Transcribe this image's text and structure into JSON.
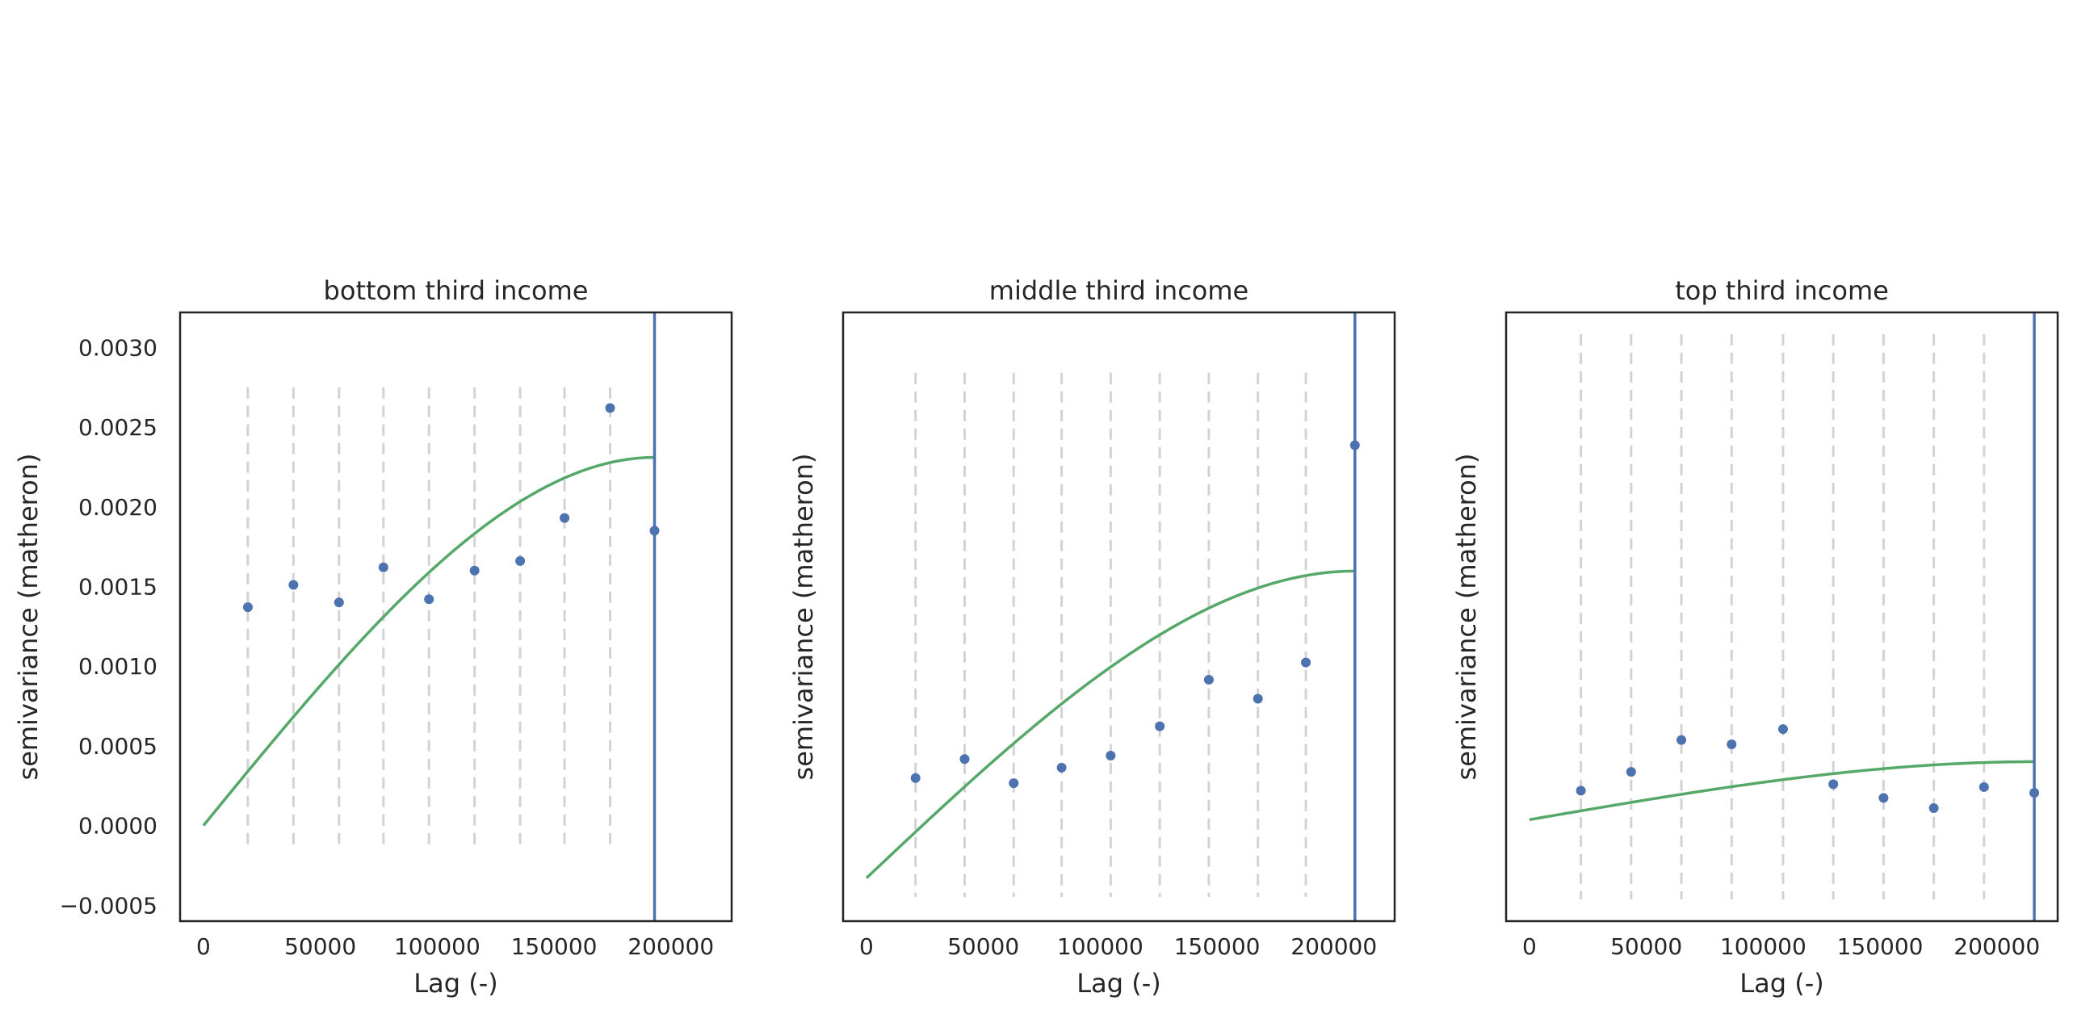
{
  "chart_data": [
    {
      "type": "scatter",
      "title": "bottom third income",
      "xlabel": "Lag (-)",
      "ylabel": "semivariance (matheron)",
      "xlim": [
        -10000,
        226000
      ],
      "ylim": [
        -0.0006,
        0.00322
      ],
      "xticks": [
        0,
        50000,
        100000,
        150000,
        200000
      ],
      "xtick_labels": [
        "0",
        "50000",
        "100000",
        "150000",
        "200000"
      ],
      "yticks": [
        -0.0005,
        0.0,
        0.0005,
        0.001,
        0.0015,
        0.002,
        0.0025,
        0.003
      ],
      "ytick_labels": [
        "−0.0005",
        "0.0000",
        "0.0005",
        "0.0010",
        "0.0015",
        "0.0020",
        "0.0025",
        "0.0030"
      ],
      "show_yticks": true,
      "grid": false,
      "bin_edges": [
        19000,
        38500,
        58000,
        77000,
        96500,
        116000,
        135500,
        154500,
        174000
      ],
      "bin_line_range": [
        -0.00012,
        0.00275
      ],
      "points": {
        "x": [
          19000,
          38500,
          58000,
          77000,
          96500,
          116000,
          135500,
          154500,
          174000,
          193000
        ],
        "y": [
          0.00137,
          0.00151,
          0.0014,
          0.00162,
          0.00142,
          0.0016,
          0.00166,
          0.00193,
          0.00262,
          0.00185
        ]
      },
      "model": {
        "type": "spherical",
        "range": 193000,
        "sill": 0.00231,
        "nugget": 0.0
      },
      "max_lag": 193000
    },
    {
      "type": "scatter",
      "title": "middle third income",
      "xlabel": "Lag (-)",
      "ylabel": "semivariance (matheron)",
      "xlim": [
        -10000,
        226000
      ],
      "ylim": [
        -0.00025,
        0.00328
      ],
      "xticks": [
        0,
        50000,
        100000,
        150000,
        200000
      ],
      "xtick_labels": [
        "0",
        "50000",
        "100000",
        "150000",
        "200000"
      ],
      "yticks": [],
      "ytick_labels": [],
      "show_yticks": false,
      "grid": false,
      "bin_edges": [
        21000,
        42000,
        63000,
        83500,
        104500,
        125500,
        146500,
        167500,
        188000
      ],
      "bin_line_range": [
        -0.00011,
        0.00293
      ],
      "points": {
        "x": [
          21000,
          42000,
          63000,
          83500,
          104500,
          125500,
          146500,
          167500,
          188000,
          209000
        ],
        "y": [
          0.00058,
          0.00069,
          0.00055,
          0.00064,
          0.00071,
          0.00088,
          0.00115,
          0.00104,
          0.00125,
          0.00251
        ]
      },
      "model": {
        "type": "spherical",
        "range": 209000,
        "sill": 0.00178,
        "nugget": 0.0
      },
      "max_lag": 209000
    },
    {
      "type": "scatter",
      "title": "top third income",
      "xlabel": "Lag (-)",
      "ylabel": "semivariance (matheron)",
      "xlim": [
        -10000,
        226000
      ],
      "ylim": [
        -0.00014,
        0.0007
      ],
      "xticks": [
        0,
        50000,
        100000,
        150000,
        200000
      ],
      "xtick_labels": [
        "0",
        "50000",
        "100000",
        "150000",
        "200000"
      ],
      "yticks": [],
      "ytick_labels": [],
      "show_yticks": false,
      "grid": false,
      "bin_edges": [
        22000,
        43500,
        65000,
        86500,
        108500,
        130000,
        151500,
        173000,
        194500
      ],
      "bin_line_range": [
        -0.00011,
        0.00067
      ],
      "points": {
        "x": [
          22000,
          43500,
          65000,
          86500,
          108500,
          130000,
          151500,
          173000,
          194500,
          216000
        ],
        "y": [
          4e-05,
          6.6e-05,
          0.00011,
          0.000104,
          0.000125,
          4.9e-05,
          3e-05,
          1.6e-05,
          4.5e-05,
          3.7e-05
        ]
      },
      "model": {
        "type": "spherical",
        "range": 216000,
        "sill": 8e-05,
        "nugget": 0.0
      },
      "max_lag": 216000
    }
  ],
  "colors": {
    "points": "#4c72b0",
    "model": "#55a868",
    "max_lag_line": "#4c72b0",
    "bin_lines": "#d3d3d3",
    "frame": "#262626",
    "text": "#262626"
  }
}
